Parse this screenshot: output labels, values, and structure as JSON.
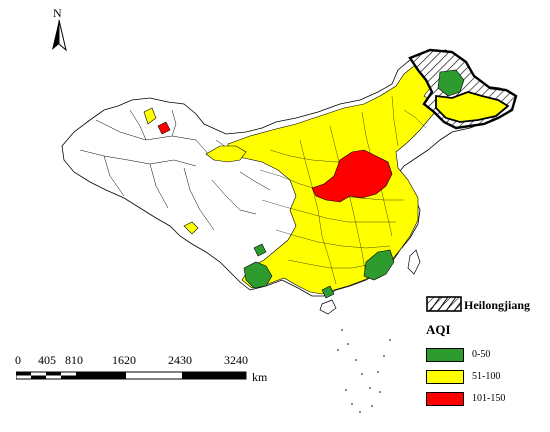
{
  "map": {
    "north_label": "N",
    "scale": {
      "ticks": [
        "0",
        "405",
        "810",
        "1620",
        "2430",
        "3240"
      ],
      "unit": "km"
    },
    "legend": {
      "hatch_label": "Heilongjiang",
      "title": "AQI",
      "classes": [
        {
          "label": "0-50",
          "color": "#2e9b2e"
        },
        {
          "label": "51-100",
          "color": "#ffff00"
        },
        {
          "label": "101-150",
          "color": "#ff0000"
        }
      ]
    },
    "colors": {
      "unfilled": "#ffffff",
      "boundary": "#000000"
    }
  }
}
